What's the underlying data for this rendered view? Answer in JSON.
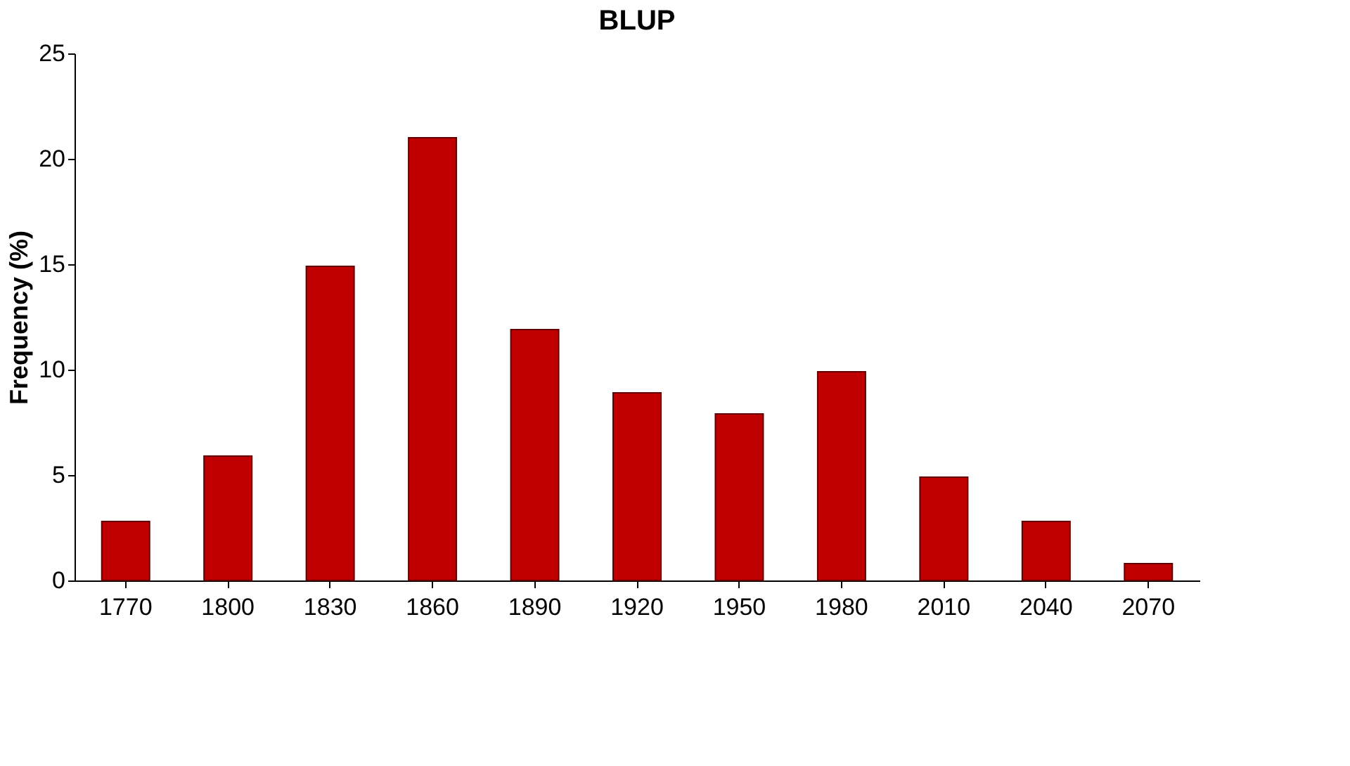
{
  "chart_data": {
    "type": "bar",
    "title": "BLUP",
    "ylabel": "Frequency (%)",
    "categories": [
      "1770",
      "1800",
      "1830",
      "1860",
      "1890",
      "1920",
      "1950",
      "1980",
      "2010",
      "2040",
      "2070"
    ],
    "values": [
      2.8,
      5.9,
      14.9,
      21,
      11.9,
      8.9,
      7.9,
      9.9,
      4.9,
      2.8,
      0.8
    ],
    "color": "#c00000",
    "ylim": [
      0,
      25
    ],
    "yticks": [
      0,
      5,
      10,
      15,
      20,
      25
    ],
    "grid": false
  }
}
